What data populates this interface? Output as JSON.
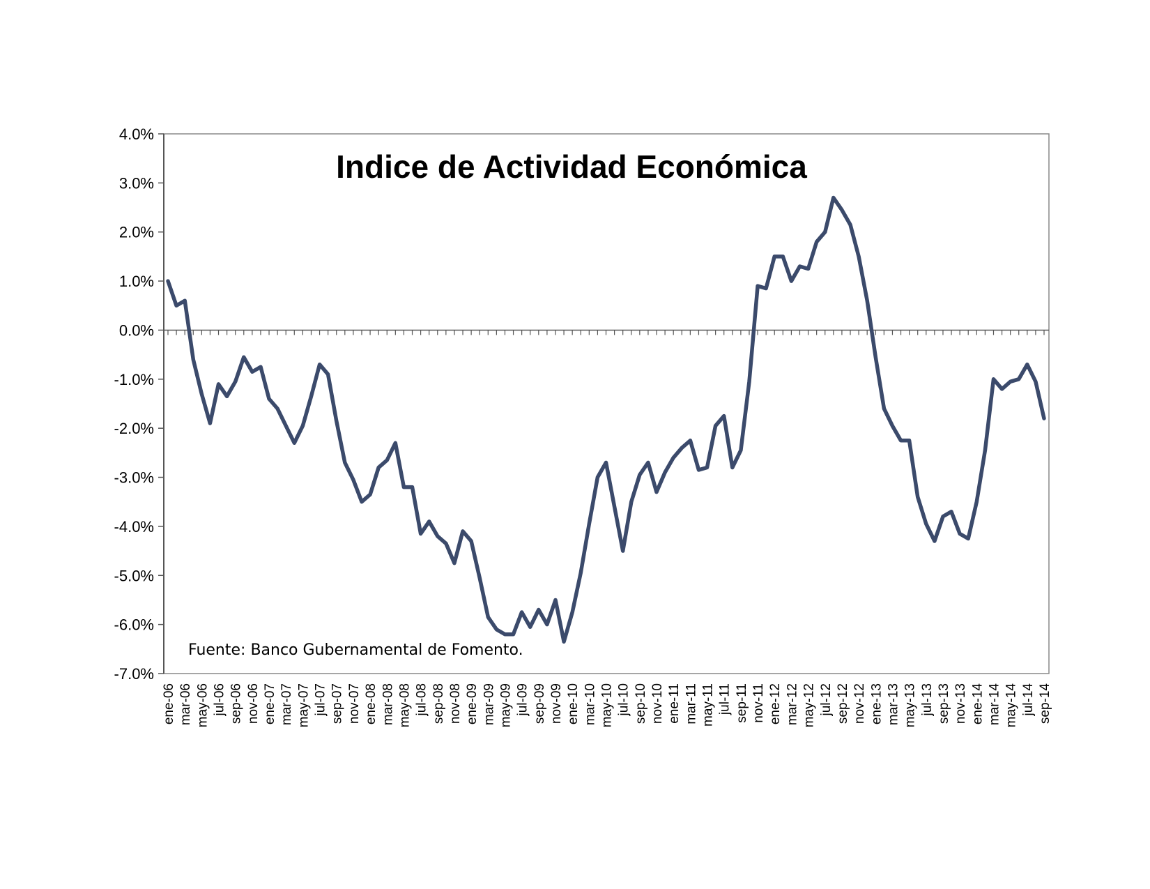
{
  "chart_data": {
    "type": "line",
    "title": "Indice de Actividad Económica",
    "source_note": "Fuente: Banco Gubernamental de Fomento.",
    "xlabel": "",
    "ylabel": "",
    "ylim": [
      -7.0,
      4.0
    ],
    "y_ticks": [
      "4.0%",
      "3.0%",
      "2.0%",
      "1.0%",
      "0.0%",
      "-1.0%",
      "-2.0%",
      "-3.0%",
      "-4.0%",
      "-5.0%",
      "-6.0%",
      "-7.0%"
    ],
    "y_tick_values": [
      4,
      3,
      2,
      1,
      0,
      -1,
      -2,
      -3,
      -4,
      -5,
      -6,
      -7
    ],
    "x_tick_labels": [
      "ene-06",
      "mar-06",
      "may-06",
      "jul-06",
      "sep-06",
      "nov-06",
      "ene-07",
      "mar-07",
      "may-07",
      "jul-07",
      "sep-07",
      "nov-07",
      "ene-08",
      "mar-08",
      "may-08",
      "jul-08",
      "sep-08",
      "nov-08",
      "ene-09",
      "mar-09",
      "may-09",
      "jul-09",
      "sep-09",
      "nov-09",
      "ene-10",
      "mar-10",
      "may-10",
      "jul-10",
      "sep-10",
      "nov-10",
      "ene-11",
      "mar-11",
      "may-11",
      "jul-11",
      "sep-11",
      "nov-11",
      "ene-12",
      "mar-12",
      "may-12",
      "jul-12",
      "sep-12",
      "nov-12",
      "ene-13",
      "mar-13",
      "may-13",
      "jul-13",
      "sep-13",
      "nov-13",
      "ene-14",
      "mar-14",
      "may-14",
      "jul-14",
      "sep-14"
    ],
    "grid": false,
    "zero_line": true,
    "line_color": "#3b4a6b",
    "series": [
      {
        "values": [
          1.0,
          0.5,
          0.6,
          -0.6,
          -1.3,
          -1.9,
          -1.1,
          -1.35,
          -1.05,
          -0.55,
          -0.85,
          -0.75,
          -1.4,
          -1.6,
          -1.95,
          -2.3,
          -1.95,
          -1.35,
          -0.7,
          -0.9,
          -1.85,
          -2.7,
          -3.05,
          -3.5,
          -3.35,
          -2.8,
          -2.65,
          -2.3,
          -3.2,
          -3.2,
          -4.15,
          -3.9,
          -4.2,
          -4.35,
          -4.75,
          -4.1,
          -4.3,
          -5.05,
          -5.85,
          -6.1,
          -6.2,
          -6.2,
          -5.75,
          -6.05,
          -5.7,
          -6.0,
          -5.5,
          -6.35,
          -5.75,
          -4.95,
          -3.95,
          -3.0,
          -2.7,
          -3.6,
          -4.5,
          -3.5,
          -2.95,
          -2.7,
          -3.3,
          -2.9,
          -2.6,
          -2.4,
          -2.25,
          -2.85,
          -2.8,
          -1.95,
          -1.75,
          -2.8,
          -2.45,
          -1.05,
          0.9,
          0.85,
          1.5,
          1.5,
          1.0,
          1.3,
          1.25,
          1.8,
          2.0,
          2.7,
          2.45,
          2.15,
          1.5,
          0.6,
          -0.55,
          -1.6,
          -1.95,
          -2.25,
          -2.25,
          -3.4,
          -3.95,
          -4.3,
          -3.8,
          -3.7,
          -4.15,
          -4.25,
          -3.5,
          -2.45,
          -1.0,
          -1.2,
          -1.05,
          -1.0,
          -0.7,
          -1.05,
          -1.8
        ]
      }
    ]
  }
}
